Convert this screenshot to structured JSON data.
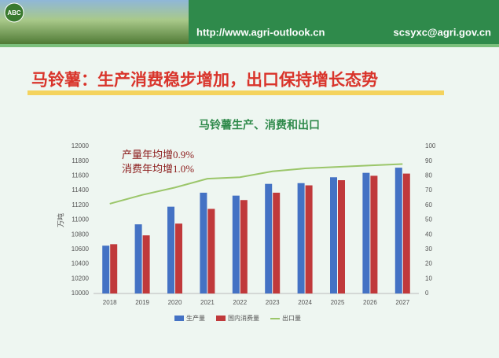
{
  "header": {
    "logo": "ABC",
    "url": "http://www.agri-outlook.cn",
    "email": "scsyxc@agri.gov.cn"
  },
  "slide_title": "马铃薯：生产消费稳步增加，出口保持增长态势",
  "chart_data": {
    "type": "bar",
    "title": "马铃薯生产、消费和出口",
    "y_label": "万吨",
    "categories": [
      "2018",
      "2019",
      "2020",
      "2021",
      "2022",
      "2023",
      "2024",
      "2025",
      "2026",
      "2027"
    ],
    "series": [
      {
        "name": "生产量",
        "color": "#4472c4",
        "values": [
          10650,
          10940,
          11180,
          11370,
          11330,
          11490,
          11500,
          11580,
          11640,
          11710
        ]
      },
      {
        "name": "国内消费量",
        "color": "#c0393b",
        "values": [
          10670,
          10790,
          10950,
          11150,
          11270,
          11370,
          11470,
          11540,
          11600,
          11630
        ]
      },
      {
        "name": "出口量",
        "color": "#9bc66a",
        "type": "line",
        "axis": "y2",
        "values": [
          61,
          67,
          72,
          78,
          79,
          83,
          85,
          86,
          87,
          88
        ]
      }
    ],
    "ylim": [
      10000,
      12000
    ],
    "yticks": [
      10000,
      10200,
      10400,
      10600,
      10800,
      11000,
      11200,
      11400,
      11600,
      11800,
      12000
    ],
    "y2lim": [
      0,
      100
    ],
    "y2ticks": [
      0,
      10,
      20,
      30,
      40,
      50,
      60,
      70,
      80,
      90,
      100
    ],
    "annotations": [
      "产量年均增0.9%",
      "消费年均增1.0%"
    ],
    "legend": "bottom",
    "grid": false
  }
}
